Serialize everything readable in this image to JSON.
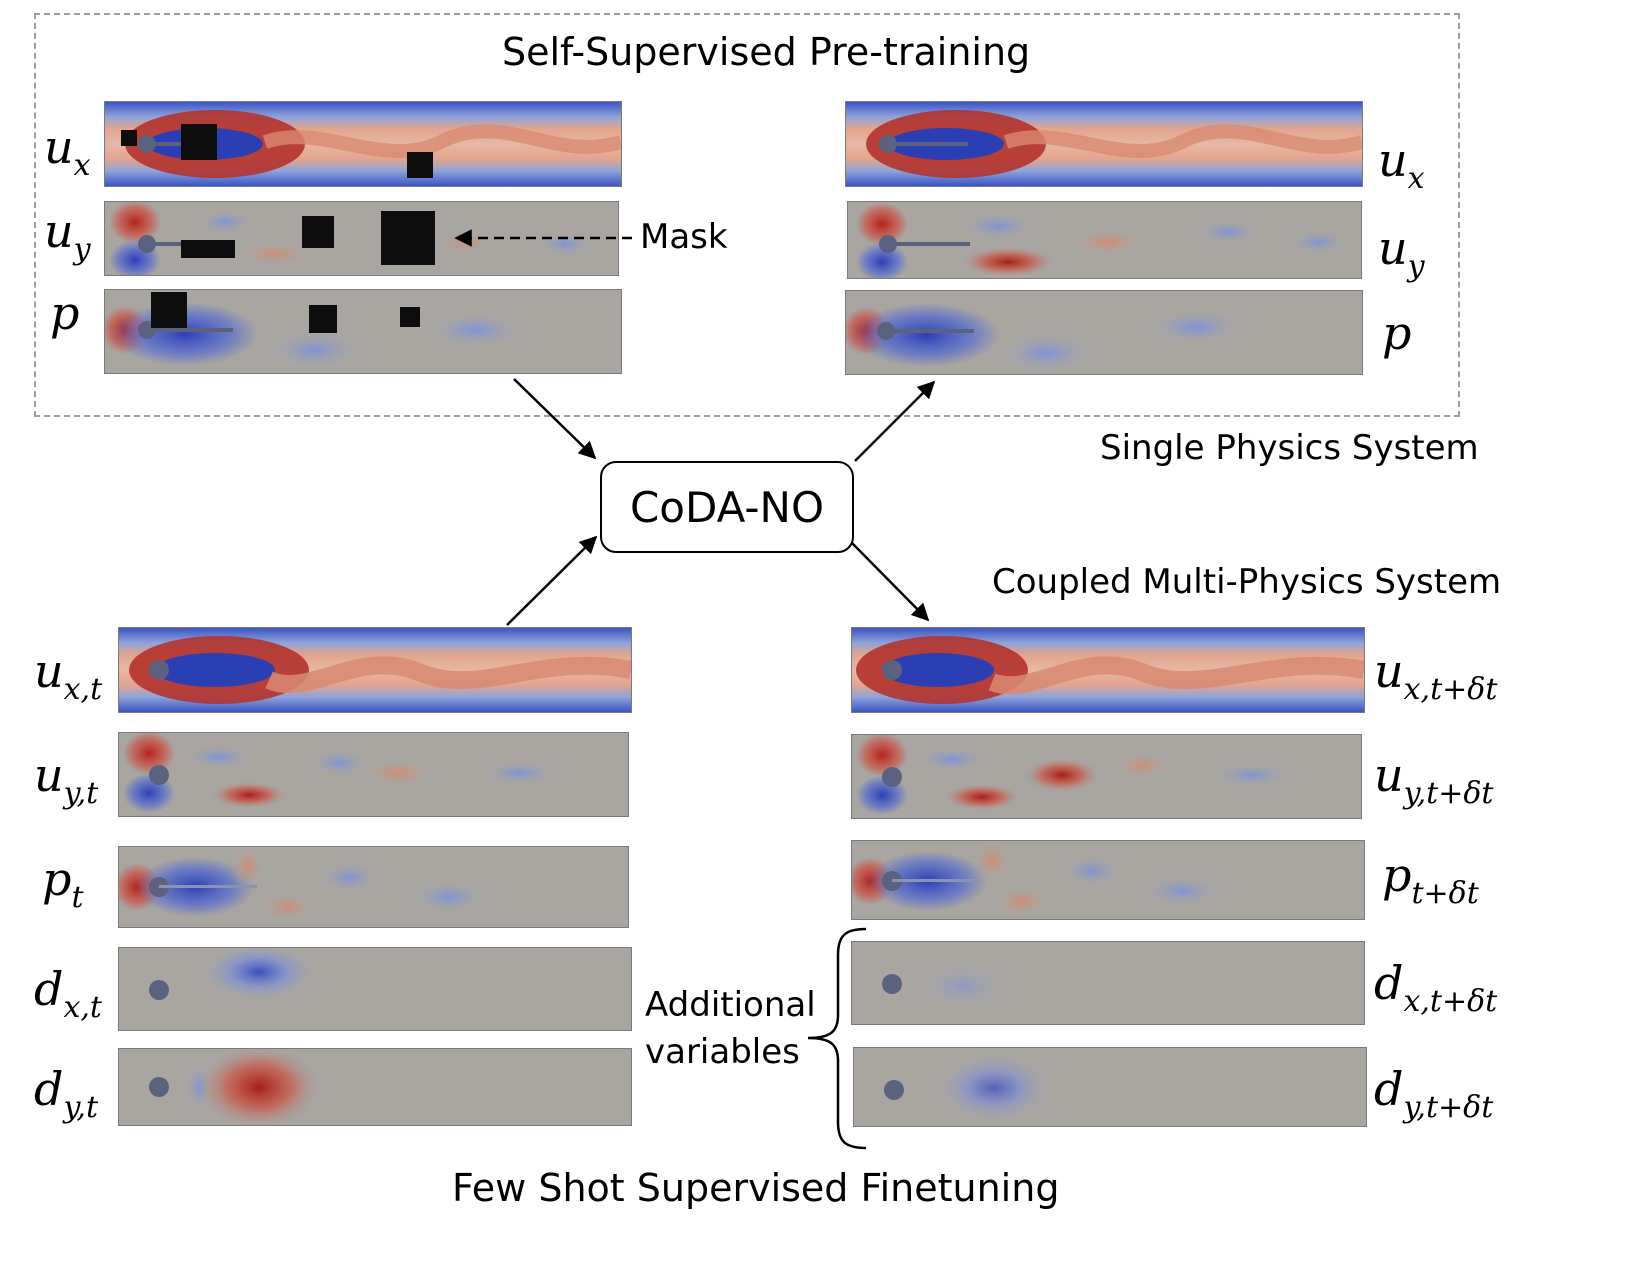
{
  "pretraining": {
    "title": "Self-Supervised Pre-training",
    "left_labels": [
      {
        "base": "u",
        "sub": "x"
      },
      {
        "base": "u",
        "sub": "y"
      },
      {
        "base": "p",
        "sub": ""
      }
    ],
    "right_labels": [
      {
        "base": "u",
        "sub": "x"
      },
      {
        "base": "u",
        "sub": "y"
      },
      {
        "base": "p",
        "sub": ""
      }
    ],
    "mask_label": "Mask",
    "system_label": "Single Physics System"
  },
  "model": {
    "name": "CoDA-NO"
  },
  "finetuning": {
    "title": "Few Shot Supervised Finetuning",
    "system_label": "Coupled Multi-Physics System",
    "left_labels": [
      {
        "base": "u",
        "sub": "x,t"
      },
      {
        "base": "u",
        "sub": "y,t"
      },
      {
        "base": "p",
        "sub": "t"
      },
      {
        "base": "d",
        "sub": "x,t"
      },
      {
        "base": "d",
        "sub": "y,t"
      }
    ],
    "right_labels": [
      {
        "base": "u",
        "sub": "x,t+δt"
      },
      {
        "base": "u",
        "sub": "y,t+δt"
      },
      {
        "base": "p",
        "sub": "t+δt"
      },
      {
        "base": "d",
        "sub": "x,t+δt"
      },
      {
        "base": "d",
        "sub": "y,t+δt"
      }
    ],
    "additional_label_line1": "Additional",
    "additional_label_line2": "variables"
  },
  "colors": {
    "field_red": "#b8342e",
    "field_blue": "#3c57c4",
    "field_neutral": "#a9a6a2",
    "cylinder": "#5a6280",
    "mask": "#0d0d0d"
  }
}
